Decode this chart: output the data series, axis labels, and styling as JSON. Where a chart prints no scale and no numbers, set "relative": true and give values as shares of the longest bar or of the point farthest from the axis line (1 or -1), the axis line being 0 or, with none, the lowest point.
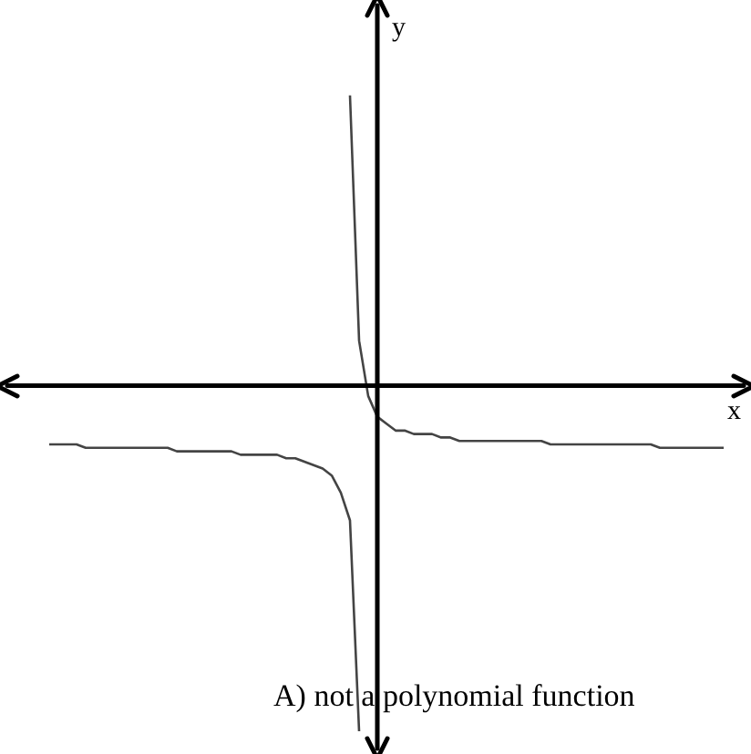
{
  "chart_data": {
    "type": "line",
    "relative": true,
    "xlabel": "x",
    "ylabel": "y",
    "marker": "none",
    "categories": [
      null,
      null,
      null,
      null,
      null,
      null,
      null,
      null,
      null,
      null,
      null,
      null,
      null,
      null,
      null,
      null,
      null,
      null,
      null,
      null,
      null,
      null,
      null,
      null,
      null,
      null,
      null,
      null,
      null,
      null,
      null,
      null,
      null,
      null,
      null,
      null,
      null,
      null,
      null,
      null,
      null,
      null,
      null,
      null,
      null,
      null,
      null,
      null,
      null,
      null,
      null,
      null,
      null,
      null,
      null,
      null,
      null,
      null,
      null,
      null,
      null,
      null,
      null,
      null,
      null,
      null,
      null,
      null,
      null,
      null,
      null,
      null,
      null,
      null,
      null,
      null,
      null,
      null,
      null,
      null,
      null
    ],
    "series": [
      {
        "color": "#444444",
        "values": [
          null,
          null,
          null,
          null,
          -0.17,
          -0.17,
          -0.17,
          -0.17,
          -0.18,
          -0.18,
          -0.18,
          -0.18,
          -0.18,
          -0.18,
          -0.18,
          -0.18,
          -0.18,
          -0.18,
          -0.19,
          -0.19,
          -0.19,
          -0.19,
          -0.19,
          -0.19,
          -0.19,
          -0.2,
          -0.2,
          -0.2,
          -0.2,
          -0.2,
          -0.21,
          -0.21,
          -0.22,
          -0.23,
          -0.24,
          -0.26,
          -0.31,
          -0.39,
          -1,
          null,
          null,
          null,
          null,
          null,
          null,
          null,
          null,
          null,
          null,
          null,
          null,
          null,
          null,
          null,
          null,
          null,
          null,
          null,
          null,
          null,
          null,
          null,
          null,
          null,
          null,
          null,
          null,
          null,
          null,
          null,
          null,
          null,
          null,
          null,
          null,
          null,
          null,
          null,
          null,
          null,
          null
        ]
      },
      {
        "color": "#444444",
        "values": [
          null,
          null,
          null,
          null,
          null,
          null,
          null,
          null,
          null,
          null,
          null,
          null,
          null,
          null,
          null,
          null,
          null,
          null,
          null,
          null,
          null,
          null,
          null,
          null,
          null,
          null,
          null,
          null,
          null,
          null,
          null,
          null,
          null,
          null,
          null,
          null,
          null,
          0.84,
          0.13,
          -0.03,
          -0.09,
          -0.11,
          -0.13,
          -0.13,
          -0.14,
          -0.14,
          -0.14,
          -0.15,
          -0.15,
          -0.16,
          -0.16,
          -0.16,
          -0.16,
          -0.16,
          -0.16,
          -0.16,
          -0.16,
          -0.16,
          -0.16,
          -0.17,
          -0.17,
          -0.17,
          -0.17,
          -0.17,
          -0.17,
          -0.17,
          -0.17,
          -0.17,
          -0.17,
          -0.17,
          -0.17,
          -0.18,
          -0.18,
          -0.18,
          -0.18,
          -0.18,
          -0.18,
          -0.18,
          -0.18,
          null,
          null
        ]
      }
    ],
    "annotations": [
      "A) not a polynomial function"
    ]
  }
}
